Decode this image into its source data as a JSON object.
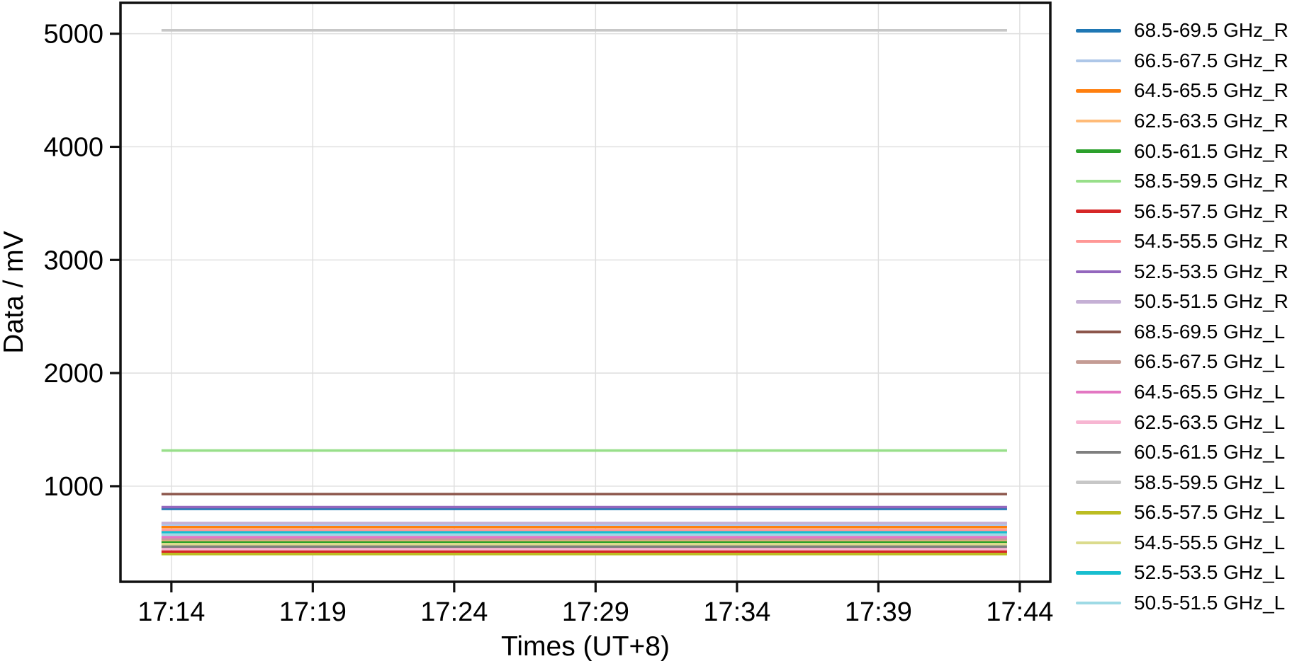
{
  "chart_data": {
    "type": "line",
    "title": "",
    "xlabel": "Times (UT+8)",
    "ylabel": "Data / mV",
    "x_ticks": [
      "17:14",
      "17:19",
      "17:24",
      "17:29",
      "17:34",
      "17:39",
      "17:44"
    ],
    "y_ticks": [
      1000,
      2000,
      3000,
      4000,
      5000
    ],
    "xlim_minutes": [
      1032.2,
      1065.08
    ],
    "ylim": [
      155,
      5273
    ],
    "data_x_start_min": 1033.65,
    "data_x_end_min": 1063.55,
    "grid": true,
    "legend_position": "right",
    "series": [
      {
        "name": "68.5-69.5 GHz_R",
        "color": "#1f77b4",
        "value_mV": 800
      },
      {
        "name": "66.5-67.5 GHz_R",
        "color": "#aec7e8",
        "value_mV": 660
      },
      {
        "name": "64.5-65.5 GHz_R",
        "color": "#ff7f0e",
        "value_mV": 638
      },
      {
        "name": "62.5-63.5 GHz_R",
        "color": "#ffbb78",
        "value_mV": 520
      },
      {
        "name": "60.5-61.5 GHz_R",
        "color": "#2ca02c",
        "value_mV": 503
      },
      {
        "name": "58.5-59.5 GHz_R",
        "color": "#98df8a",
        "value_mV": 1315
      },
      {
        "name": "56.5-57.5 GHz_R",
        "color": "#d62728",
        "value_mV": 422
      },
      {
        "name": "54.5-55.5 GHz_R",
        "color": "#ff9896",
        "value_mV": 612
      },
      {
        "name": "52.5-53.5 GHz_R",
        "color": "#9467bd",
        "value_mV": 815
      },
      {
        "name": "50.5-51.5 GHz_R",
        "color": "#c5b0d5",
        "value_mV": 675
      },
      {
        "name": "68.5-69.5 GHz_L",
        "color": "#8c564b",
        "value_mV": 930
      },
      {
        "name": "66.5-67.5 GHz_L",
        "color": "#c49c94",
        "value_mV": 532
      },
      {
        "name": "64.5-65.5 GHz_L",
        "color": "#e377c2",
        "value_mV": 550
      },
      {
        "name": "62.5-63.5 GHz_L",
        "color": "#f7b6d2",
        "value_mV": 448
      },
      {
        "name": "60.5-61.5 GHz_L",
        "color": "#7f7f7f",
        "value_mV": 466
      },
      {
        "name": "58.5-59.5 GHz_L",
        "color": "#c7c7c7",
        "value_mV": 5030
      },
      {
        "name": "56.5-57.5 GHz_L",
        "color": "#bcbd22",
        "value_mV": 400
      },
      {
        "name": "54.5-55.5 GHz_L",
        "color": "#dbdb8d",
        "value_mV": 488
      },
      {
        "name": "52.5-53.5 GHz_L",
        "color": "#17becf",
        "value_mV": 592
      },
      {
        "name": "50.5-51.5 GHz_L",
        "color": "#9edae5",
        "value_mV": 572
      }
    ],
    "colors": {
      "grid": "#dedede",
      "spine": "#111111",
      "text": "#000000",
      "background": "#ffffff"
    }
  }
}
